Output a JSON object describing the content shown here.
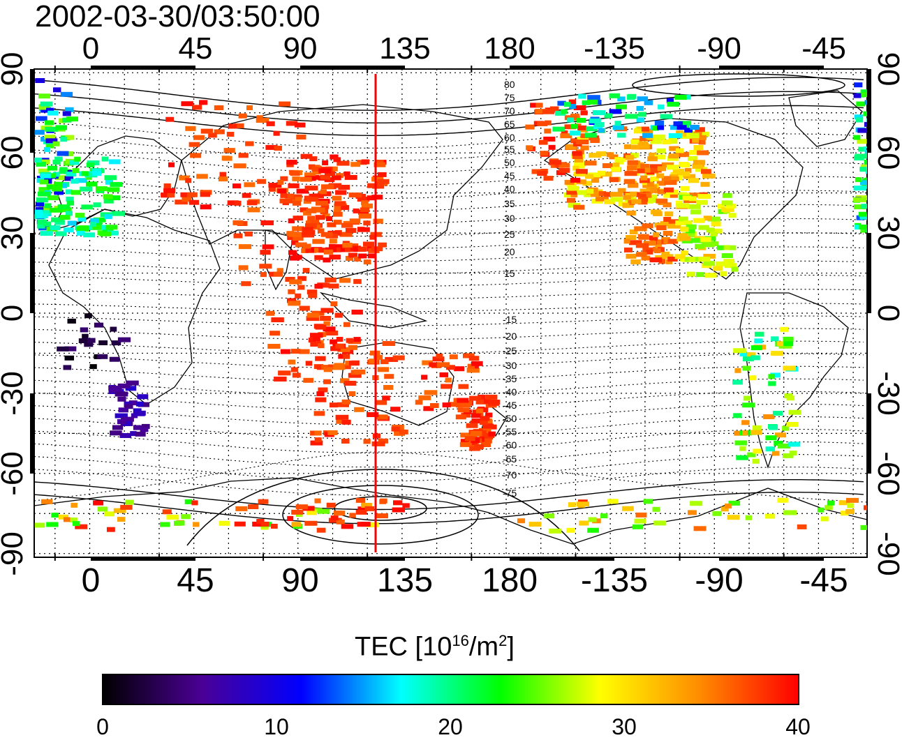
{
  "timestamp": "2002-03-30/03:50:00",
  "map": {
    "longitude_ticks_top": [
      "0",
      "45",
      "90",
      "135",
      "180",
      "-135",
      "-90",
      "-45"
    ],
    "longitude_ticks_bottom": [
      "0",
      "45",
      "90",
      "135",
      "180",
      "-135",
      "-90",
      "-45"
    ],
    "latitude_ticks": [
      "90",
      "60",
      "30",
      "0",
      "-30",
      "-60",
      "-90"
    ],
    "magnetic_latitude_contour_labels": [
      "80",
      "75",
      "70",
      "65",
      "60",
      "55",
      "50",
      "45",
      "40",
      "35",
      "30",
      "25",
      "20",
      "15",
      "-15",
      "-20",
      "-25",
      "-30",
      "-35",
      "-40",
      "-45",
      "-50",
      "-55",
      "-60",
      "-65",
      "-70",
      "-75"
    ],
    "meridian_longitude": 123,
    "meridian_color": "#ff0000"
  },
  "colorbar": {
    "title_prefix": "TEC  [10",
    "title_exp1": "16",
    "title_mid": "/m",
    "title_exp2": "2",
    "title_suffix": "]",
    "tick_labels": [
      "0",
      "10",
      "20",
      "30",
      "40"
    ],
    "range": [
      0,
      40
    ],
    "colors": [
      "#000000",
      "#4b0096",
      "#0000ff",
      "#00ffff",
      "#00ff00",
      "#ffff00",
      "#ff8c00",
      "#ff0000"
    ]
  }
}
